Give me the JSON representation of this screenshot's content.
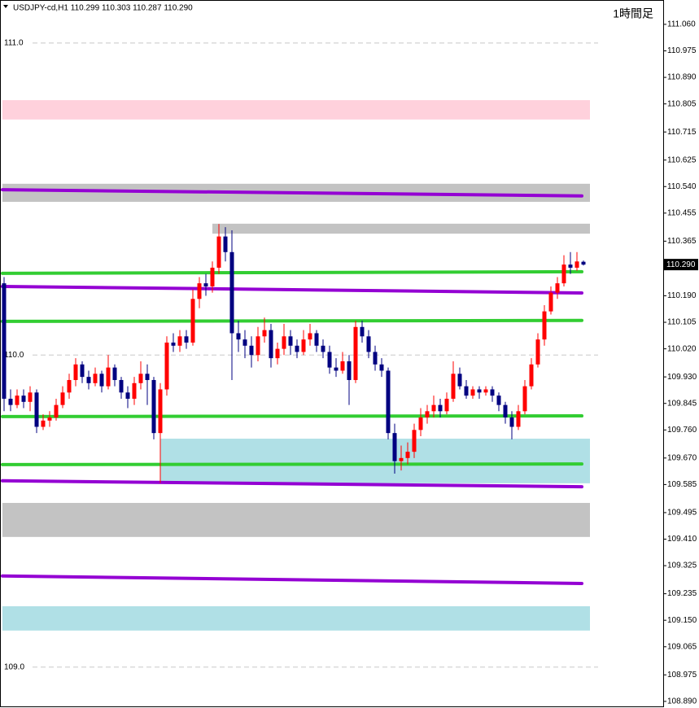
{
  "chart_data": {
    "type": "candlestick",
    "title": "USDJPY-cd,H1  110.299 110.303 110.287 110.290",
    "annotation": "1時間足",
    "up_color": "#ff0000",
    "down_color": "#000080",
    "ylim": [
      108.874,
      111.138
    ],
    "yticks": [
      {
        "value": 111.06,
        "label": "111.060"
      },
      110.975,
      {
        "value": 110.89,
        "label": "110.890"
      },
      110.805,
      110.715,
      110.625,
      {
        "value": 110.54,
        "label": "110.540"
      },
      110.455,
      110.365,
      {
        "value": 110.19,
        "label": "110.190"
      },
      110.105,
      {
        "value": 110.02,
        "label": "110.020"
      },
      {
        "value": 109.93,
        "label": "109.930"
      },
      109.845,
      {
        "value": 109.76,
        "label": "109.760"
      },
      {
        "value": 109.67,
        "label": "109.670"
      },
      109.585,
      109.495,
      {
        "value": 109.41,
        "label": "109.410"
      },
      109.325,
      109.235,
      {
        "value": 109.15,
        "label": "109.150"
      },
      109.065,
      108.975,
      {
        "value": 108.89,
        "label": "108.890"
      }
    ],
    "levels": [
      {
        "value": 111,
        "label": "111.0"
      },
      {
        "value": 110,
        "label": "110.0"
      },
      {
        "value": 109,
        "label": "109.0"
      }
    ],
    "last_price": {
      "value": 110.29,
      "label": "110.290"
    },
    "zones": [
      {
        "from": 0,
        "high": 110.817,
        "low": 110.755,
        "color": "#ffd1dc"
      },
      {
        "from": 0,
        "high": 110.549,
        "low": 110.491,
        "color": "#c3c3c3"
      },
      {
        "from": 32,
        "high": 110.421,
        "low": 110.389,
        "color": "#c3c3c3"
      },
      {
        "from": 24,
        "high": 109.732,
        "low": 109.589,
        "color": "#b0e0e6"
      },
      {
        "from": 0,
        "high": 109.526,
        "low": 109.417,
        "color": "#c3c3c3"
      },
      {
        "from": 0,
        "high": 109.195,
        "low": 109.117,
        "color": "#b0e0e6"
      }
    ],
    "lines": [
      {
        "start": 110.53,
        "end": 110.51,
        "color": "#9400d3"
      },
      {
        "start": 110.262,
        "end": 110.267,
        "color": "#32cd32"
      },
      {
        "start": 110.22,
        "end": 110.199,
        "color": "#9400d3"
      },
      {
        "start": 110.108,
        "end": 110.111,
        "color": "#32cd32"
      },
      {
        "start": 109.803,
        "end": 109.805,
        "color": "#32cd32"
      },
      {
        "start": 109.649,
        "end": 109.651,
        "color": "#32cd32"
      },
      {
        "start": 109.597,
        "end": 109.578,
        "color": "#9400d3"
      },
      {
        "start": 109.292,
        "end": 109.268,
        "color": "#9400d3"
      }
    ],
    "candles": [
      [
        110.23,
        110.25,
        109.82,
        109.86
      ],
      [
        109.86,
        109.89,
        109.82,
        109.84
      ],
      [
        109.84,
        109.89,
        109.83,
        109.87
      ],
      [
        109.87,
        109.89,
        109.83,
        109.85
      ],
      [
        109.85,
        109.9,
        109.82,
        109.88
      ],
      [
        109.88,
        109.89,
        109.75,
        109.77
      ],
      [
        109.77,
        109.81,
        109.76,
        109.79
      ],
      [
        109.79,
        109.82,
        109.77,
        109.8
      ],
      [
        109.8,
        109.86,
        109.79,
        109.84
      ],
      [
        109.84,
        109.9,
        109.83,
        109.88
      ],
      [
        109.88,
        109.94,
        109.86,
        109.92
      ],
      [
        109.92,
        109.99,
        109.9,
        109.97
      ],
      [
        109.97,
        109.98,
        109.91,
        109.93
      ],
      [
        109.93,
        109.95,
        109.89,
        109.91
      ],
      [
        109.91,
        109.96,
        109.9,
        109.94
      ],
      [
        109.94,
        109.95,
        109.88,
        109.9
      ],
      [
        109.9,
        110.0,
        109.89,
        109.96
      ],
      [
        109.96,
        109.97,
        109.9,
        109.92
      ],
      [
        109.92,
        109.93,
        109.86,
        109.88
      ],
      [
        109.88,
        109.9,
        109.83,
        109.86
      ],
      [
        109.86,
        109.93,
        109.84,
        109.91
      ],
      [
        109.91,
        109.98,
        109.89,
        109.94
      ],
      [
        109.94,
        109.97,
        109.84,
        109.92
      ],
      [
        109.92,
        109.93,
        109.73,
        109.75
      ],
      [
        109.75,
        109.91,
        109.59,
        109.89
      ],
      [
        109.89,
        110.06,
        109.87,
        110.04
      ],
      [
        110.04,
        110.07,
        110.01,
        110.03
      ],
      [
        110.03,
        110.08,
        110.01,
        110.06
      ],
      [
        110.06,
        110.08,
        110.02,
        110.04
      ],
      [
        110.04,
        110.21,
        110.03,
        110.18
      ],
      [
        110.18,
        110.25,
        110.15,
        110.23
      ],
      [
        110.23,
        110.26,
        110.19,
        110.22
      ],
      [
        110.22,
        110.3,
        110.2,
        110.28
      ],
      [
        110.28,
        110.42,
        110.26,
        110.38
      ],
      [
        110.38,
        110.41,
        110.3,
        110.33
      ],
      [
        110.33,
        110.4,
        109.92,
        110.07
      ],
      [
        110.07,
        110.11,
        110.01,
        110.05
      ],
      [
        110.05,
        110.08,
        109.99,
        110.03
      ],
      [
        110.03,
        110.06,
        109.96,
        110.0
      ],
      [
        110.0,
        110.09,
        109.98,
        110.06
      ],
      [
        110.06,
        110.12,
        110.04,
        110.08
      ],
      [
        110.08,
        110.1,
        109.96,
        109.99
      ],
      [
        109.99,
        110.04,
        109.97,
        110.02
      ],
      [
        110.02,
        110.1,
        110.0,
        110.06
      ],
      [
        110.06,
        110.08,
        110.0,
        110.03
      ],
      [
        110.03,
        110.05,
        109.99,
        110.01
      ],
      [
        110.01,
        110.08,
        110.0,
        110.05
      ],
      [
        110.05,
        110.1,
        110.03,
        110.07
      ],
      [
        110.07,
        110.08,
        110.01,
        110.03
      ],
      [
        110.03,
        110.05,
        109.99,
        110.01
      ],
      [
        110.01,
        110.03,
        109.94,
        109.96
      ],
      [
        109.96,
        109.99,
        109.93,
        109.95
      ],
      [
        109.95,
        110.01,
        109.94,
        109.98
      ],
      [
        109.98,
        110.0,
        109.84,
        109.92
      ],
      [
        109.92,
        110.11,
        109.91,
        110.09
      ],
      [
        110.09,
        110.11,
        110.04,
        110.06
      ],
      [
        110.06,
        110.08,
        109.99,
        110.01
      ],
      [
        110.01,
        110.03,
        109.95,
        109.97
      ],
      [
        109.97,
        109.99,
        109.93,
        109.95
      ],
      [
        109.95,
        109.96,
        109.73,
        109.75
      ],
      [
        109.75,
        109.78,
        109.62,
        109.66
      ],
      [
        109.66,
        109.71,
        109.63,
        109.67
      ],
      [
        109.67,
        109.72,
        109.65,
        109.69
      ],
      [
        109.69,
        109.78,
        109.67,
        109.76
      ],
      [
        109.76,
        109.83,
        109.74,
        109.8
      ],
      [
        109.8,
        109.84,
        109.78,
        109.82
      ],
      [
        109.82,
        109.87,
        109.8,
        109.84
      ],
      [
        109.84,
        109.86,
        109.8,
        109.82
      ],
      [
        109.82,
        109.88,
        109.81,
        109.86
      ],
      [
        109.86,
        109.98,
        109.85,
        109.94
      ],
      [
        109.94,
        109.96,
        109.89,
        109.9
      ],
      [
        109.9,
        109.92,
        109.86,
        109.87
      ],
      [
        109.87,
        109.9,
        109.86,
        109.89
      ],
      [
        109.89,
        109.9,
        109.86,
        109.88
      ],
      [
        109.88,
        109.9,
        109.87,
        109.89
      ],
      [
        109.89,
        109.9,
        109.85,
        109.87
      ],
      [
        109.87,
        109.88,
        109.82,
        109.84
      ],
      [
        109.84,
        109.85,
        109.78,
        109.8
      ],
      [
        109.8,
        109.82,
        109.73,
        109.77
      ],
      [
        109.77,
        109.84,
        109.76,
        109.82
      ],
      [
        109.82,
        109.92,
        109.81,
        109.9
      ],
      [
        109.9,
        109.99,
        109.89,
        109.97
      ],
      [
        109.97,
        110.07,
        109.96,
        110.05
      ],
      [
        110.05,
        110.16,
        110.03,
        110.14
      ],
      [
        110.14,
        110.22,
        110.13,
        110.2
      ],
      [
        110.2,
        110.25,
        110.18,
        110.23
      ],
      [
        110.23,
        110.32,
        110.22,
        110.29
      ],
      [
        110.29,
        110.33,
        110.26,
        110.28
      ],
      [
        110.28,
        110.33,
        110.27,
        110.3
      ],
      [
        110.299,
        110.303,
        110.287,
        110.29
      ]
    ]
  }
}
